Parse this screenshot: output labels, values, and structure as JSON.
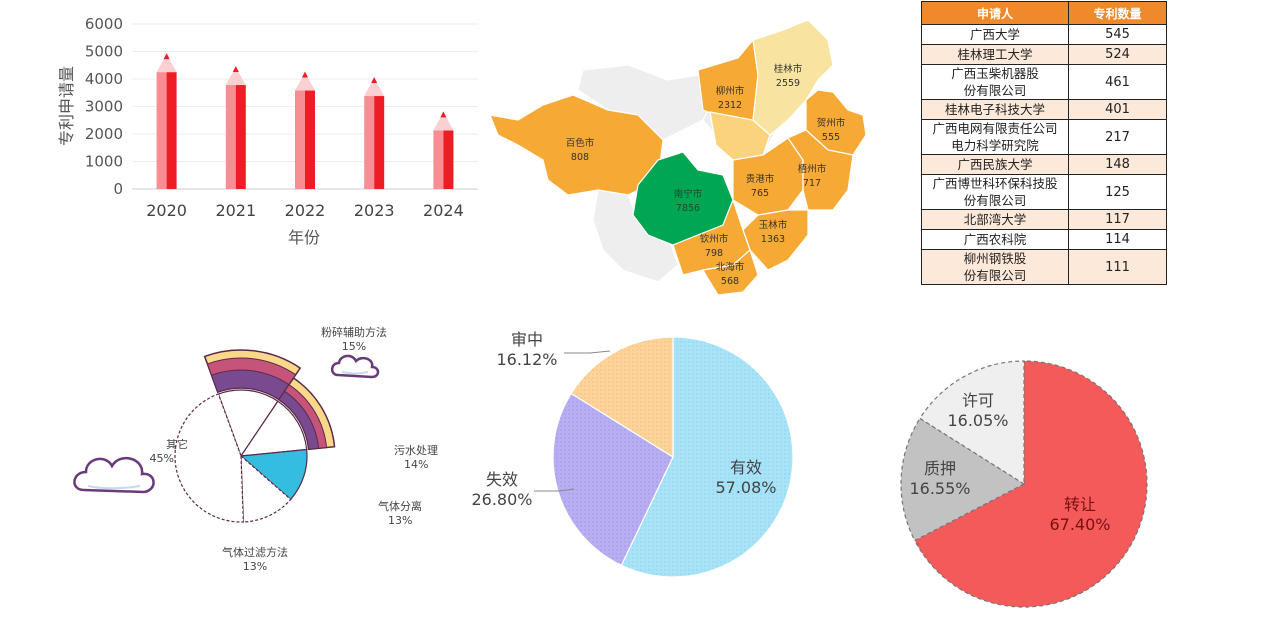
{
  "colors": {
    "bar": "#ee1c25",
    "bar_light": "#f78e93",
    "map_highlight": "#00a651",
    "map_orange": "#f7a936",
    "map_light": "#fbd37d",
    "map_pale": "#f9e3a1",
    "map_grey": "#eeeeee",
    "table_header": "#ef8a2c",
    "status_valid": "#a8e3f7",
    "status_invalid": "#b8aef2",
    "status_review": "#fcd39a",
    "transfer": "#f45a5a",
    "pledge": "#c2c2c2",
    "license": "#efefef"
  },
  "chart_data": [
    {
      "type": "bar",
      "categories": [
        "2020",
        "2021",
        "2022",
        "2023",
        "2024"
      ],
      "values": [
        4250,
        3780,
        3580,
        3380,
        2130
      ],
      "xlabel": "年份",
      "ylabel": "专利申请量",
      "ylim": [
        0,
        6000
      ],
      "yticks": [
        "0",
        "1000",
        "2000",
        "3000",
        "4000",
        "5000",
        "6000"
      ]
    },
    {
      "type": "map",
      "regions": [
        {
          "name": "桂林市",
          "value": "2559"
        },
        {
          "name": "柳州市",
          "value": "2312"
        },
        {
          "name": "贺州市",
          "value": "555"
        },
        {
          "name": "百色市",
          "value": "808"
        },
        {
          "name": "梧州市",
          "value": "717"
        },
        {
          "name": "南宁市",
          "value": "7856"
        },
        {
          "name": "贵港市",
          "value": "765"
        },
        {
          "name": "玉林市",
          "value": "1363"
        },
        {
          "name": "钦州市",
          "value": "798"
        },
        {
          "name": "北海市",
          "value": "568"
        }
      ]
    },
    {
      "type": "table",
      "columns": [
        "申请人",
        "专利数量"
      ],
      "rows": [
        [
          "广西大学",
          "545"
        ],
        [
          "桂林理工大学",
          "524"
        ],
        [
          "广西玉柴机器股份有限公司",
          "461"
        ],
        [
          "桂林电子科技大学",
          "401"
        ],
        [
          "广西电网有限责任公司电力科学研究院",
          "217"
        ],
        [
          "广西民族大学",
          "148"
        ],
        [
          "广西博世科环保科技股份有限公司",
          "125"
        ],
        [
          "北部湾大学",
          "117"
        ],
        [
          "广西农科院",
          "114"
        ],
        [
          "柳州钢铁股份有限公司",
          "111"
        ]
      ]
    },
    {
      "type": "pie",
      "slices": [
        {
          "label": "粉碎辅助方法",
          "pct": "15%",
          "value": 15
        },
        {
          "label": "污水处理",
          "pct": "14%",
          "value": 14
        },
        {
          "label": "气体分离",
          "pct": "13%",
          "value": 13
        },
        {
          "label": "气体过滤方法",
          "pct": "13%",
          "value": 13
        },
        {
          "label": "其它",
          "pct": "45%",
          "value": 45
        }
      ]
    },
    {
      "type": "pie",
      "slices": [
        {
          "label": "有效",
          "pct": "57.08%",
          "value": 57.08
        },
        {
          "label": "失效",
          "pct": "26.80%",
          "value": 26.8
        },
        {
          "label": "审中",
          "pct": "16.12%",
          "value": 16.12
        }
      ]
    },
    {
      "type": "pie",
      "slices": [
        {
          "label": "转让",
          "pct": "67.40%",
          "value": 67.4
        },
        {
          "label": "质押",
          "pct": "16.55%",
          "value": 16.55
        },
        {
          "label": "许可",
          "pct": "16.05%",
          "value": 16.05
        }
      ]
    }
  ]
}
